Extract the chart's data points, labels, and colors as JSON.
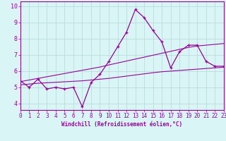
{
  "xlabel": "Windchill (Refroidissement éolien,°C)",
  "x": [
    0,
    1,
    2,
    3,
    4,
    5,
    6,
    7,
    8,
    9,
    10,
    11,
    12,
    13,
    14,
    15,
    16,
    17,
    18,
    19,
    20,
    21,
    22,
    23
  ],
  "y_main": [
    5.4,
    5.0,
    5.5,
    4.9,
    5.0,
    4.9,
    5.0,
    3.8,
    5.3,
    5.8,
    6.6,
    7.5,
    8.4,
    9.8,
    9.3,
    8.5,
    7.8,
    6.2,
    7.2,
    7.6,
    7.6,
    6.6,
    6.3,
    6.3
  ],
  "y_reg_upper": [
    5.35,
    5.45,
    5.55,
    5.65,
    5.75,
    5.85,
    5.95,
    6.05,
    6.15,
    6.25,
    6.38,
    6.5,
    6.62,
    6.74,
    6.86,
    6.98,
    7.1,
    7.22,
    7.34,
    7.46,
    7.55,
    7.6,
    7.65,
    7.7
  ],
  "y_reg_lower": [
    5.15,
    5.2,
    5.25,
    5.28,
    5.31,
    5.34,
    5.37,
    5.4,
    5.45,
    5.5,
    5.55,
    5.62,
    5.69,
    5.76,
    5.83,
    5.9,
    5.96,
    6.0,
    6.04,
    6.08,
    6.12,
    6.16,
    6.2,
    6.24
  ],
  "line_color": "#990099",
  "bg_color": "#d9f5f5",
  "grid_color": "#bbdddd",
  "xlim": [
    0,
    23
  ],
  "ylim": [
    3.6,
    10.3
  ],
  "yticks": [
    4,
    5,
    6,
    7,
    8,
    9,
    10
  ],
  "xticks": [
    0,
    1,
    2,
    3,
    4,
    5,
    6,
    7,
    8,
    9,
    10,
    11,
    12,
    13,
    14,
    15,
    16,
    17,
    18,
    19,
    20,
    21,
    22,
    23
  ]
}
